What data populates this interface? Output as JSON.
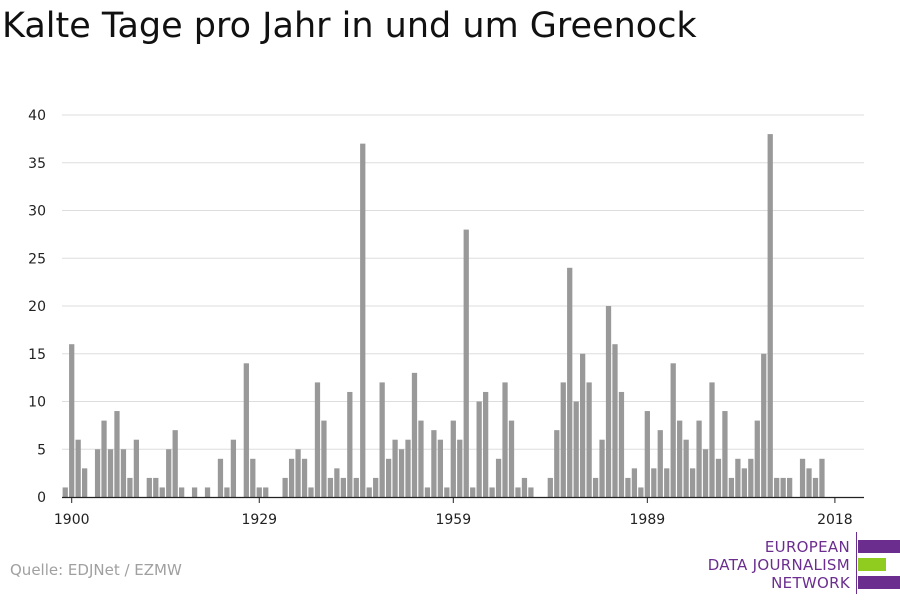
{
  "title": "Kalte Tage pro Jahr in und um Greenock",
  "source": "Quelle: EDJNet / EZMW",
  "logo": {
    "lines": [
      "EUROPEAN",
      "DATA JOURNALISM",
      "NETWORK"
    ],
    "purple": "#6b2e8f",
    "green": "#8fcc1f"
  },
  "chart_data": {
    "type": "bar",
    "title": "",
    "xlabel": "",
    "ylabel": "",
    "bar_color": "#999999",
    "grid": true,
    "ylim": [
      0,
      40
    ],
    "yticks": [
      0,
      5,
      10,
      15,
      20,
      25,
      30,
      35,
      40
    ],
    "xticks": [
      1900,
      1929,
      1959,
      1989,
      2018
    ],
    "xlim": [
      1899,
      2022
    ],
    "x": [
      1899,
      1900,
      1901,
      1902,
      1903,
      1904,
      1905,
      1906,
      1907,
      1908,
      1909,
      1910,
      1911,
      1912,
      1913,
      1914,
      1915,
      1916,
      1917,
      1918,
      1919,
      1920,
      1921,
      1922,
      1923,
      1924,
      1925,
      1926,
      1927,
      1928,
      1929,
      1930,
      1931,
      1932,
      1933,
      1934,
      1935,
      1936,
      1937,
      1938,
      1939,
      1940,
      1941,
      1942,
      1943,
      1944,
      1945,
      1946,
      1947,
      1948,
      1949,
      1950,
      1951,
      1952,
      1953,
      1954,
      1955,
      1956,
      1957,
      1958,
      1959,
      1960,
      1961,
      1962,
      1963,
      1964,
      1965,
      1966,
      1967,
      1968,
      1969,
      1970,
      1971,
      1972,
      1973,
      1974,
      1975,
      1976,
      1977,
      1978,
      1979,
      1980,
      1981,
      1982,
      1983,
      1984,
      1985,
      1986,
      1987,
      1988,
      1989,
      1990,
      1991,
      1992,
      1993,
      1994,
      1995,
      1996,
      1997,
      1998,
      1999,
      2000,
      2001,
      2002,
      2003,
      2004,
      2005,
      2006,
      2007,
      2008,
      2009,
      2010,
      2011,
      2012,
      2013,
      2014,
      2015,
      2016,
      2017,
      2018,
      2019,
      2020,
      2021,
      2022
    ],
    "values": [
      1,
      16,
      6,
      3,
      0,
      5,
      8,
      5,
      9,
      5,
      2,
      6,
      0,
      2,
      2,
      1,
      5,
      7,
      1,
      0,
      1,
      0,
      1,
      0,
      4,
      1,
      6,
      0,
      14,
      4,
      1,
      1,
      0,
      0,
      2,
      4,
      5,
      4,
      1,
      12,
      8,
      2,
      3,
      2,
      11,
      2,
      37,
      1,
      2,
      12,
      4,
      6,
      5,
      6,
      13,
      8,
      1,
      7,
      6,
      1,
      8,
      6,
      28,
      1,
      10,
      11,
      1,
      4,
      12,
      8,
      1,
      2,
      1,
      0,
      0,
      2,
      7,
      12,
      24,
      10,
      15,
      12,
      2,
      6,
      20,
      16,
      11,
      2,
      3,
      1,
      9,
      3,
      7,
      3,
      14,
      8,
      6,
      3,
      8,
      5,
      12,
      4,
      9,
      2,
      4,
      3,
      4,
      8,
      15,
      38,
      2,
      2,
      2,
      0,
      4,
      3,
      2,
      4,
      0,
      0,
      0,
      0,
      0,
      0
    ]
  }
}
